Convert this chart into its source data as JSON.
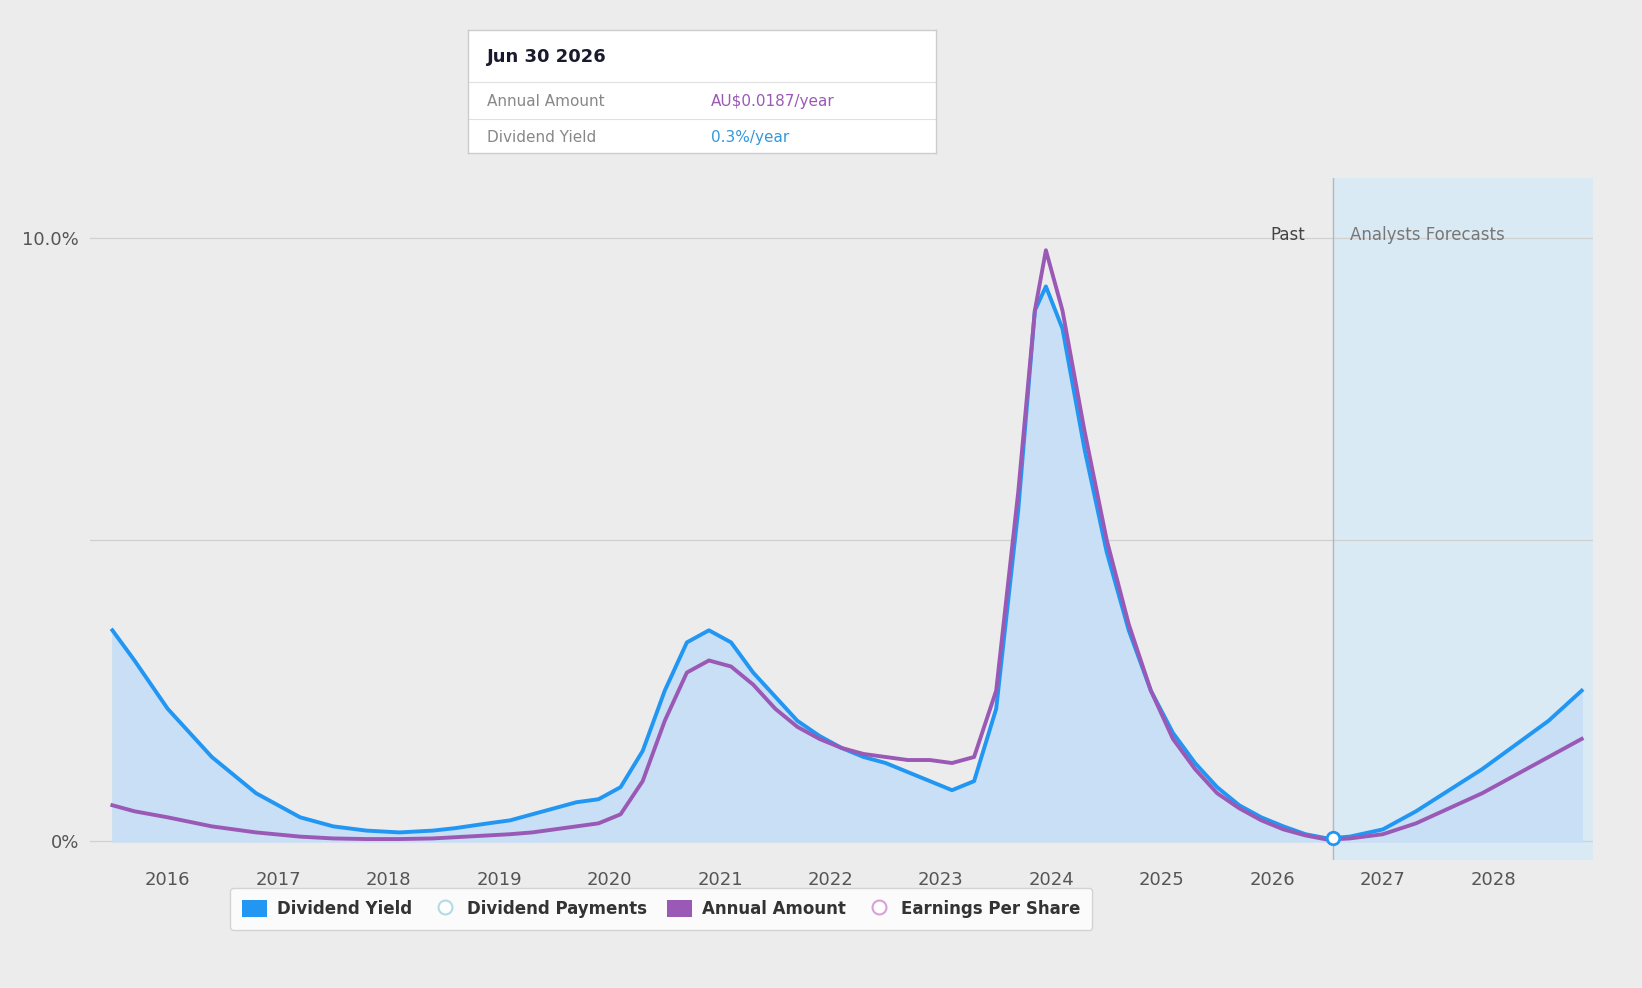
{
  "bg_color": "#ececec",
  "plot_bg_color": "#ececec",
  "line_blue_color": "#2196F3",
  "line_purple_color": "#9b59b6",
  "fill_blue_color": "#c8dff5",
  "forecast_region_color": "#daeaf5",
  "grid_color": "#d0d0d0",
  "xmin": 2015.3,
  "xmax": 2028.9,
  "ymin": -0.3,
  "ymax": 11.0,
  "forecast_start": 2026.55,
  "tooltip_title": "Jun 30 2026",
  "tooltip_annual_label": "Annual Amount",
  "tooltip_annual_value": "AU$0.0187/year",
  "tooltip_yield_label": "Dividend Yield",
  "tooltip_yield_value": "0.3%/year",
  "tooltip_annual_color": "#9b59b6",
  "tooltip_yield_color": "#3498db",
  "past_label": "Past",
  "forecast_label": "Analysts Forecasts",
  "legend_items": [
    {
      "label": "Dividend Yield",
      "color": "#2196F3",
      "filled": true
    },
    {
      "label": "Dividend Payments",
      "color": "#b0dce8",
      "filled": false
    },
    {
      "label": "Annual Amount",
      "color": "#9b59b6",
      "filled": true
    },
    {
      "label": "Earnings Per Share",
      "color": "#d8a0d8",
      "filled": false
    }
  ],
  "blue_x": [
    2015.5,
    2015.7,
    2016.0,
    2016.4,
    2016.8,
    2017.2,
    2017.5,
    2017.8,
    2018.1,
    2018.4,
    2018.6,
    2018.9,
    2019.1,
    2019.3,
    2019.5,
    2019.7,
    2019.9,
    2020.1,
    2020.3,
    2020.5,
    2020.7,
    2020.9,
    2021.1,
    2021.3,
    2021.5,
    2021.7,
    2021.9,
    2022.1,
    2022.3,
    2022.5,
    2022.7,
    2022.9,
    2023.1,
    2023.3,
    2023.5,
    2023.7,
    2023.85,
    2023.95,
    2024.1,
    2024.3,
    2024.5,
    2024.7,
    2024.9,
    2025.1,
    2025.3,
    2025.5,
    2025.7,
    2025.9,
    2026.1,
    2026.3,
    2026.5,
    2026.7,
    2027.0,
    2027.3,
    2027.6,
    2027.9,
    2028.2,
    2028.5,
    2028.8
  ],
  "blue_y": [
    3.5,
    3.0,
    2.2,
    1.4,
    0.8,
    0.4,
    0.25,
    0.18,
    0.15,
    0.18,
    0.22,
    0.3,
    0.35,
    0.45,
    0.55,
    0.65,
    0.7,
    0.9,
    1.5,
    2.5,
    3.3,
    3.5,
    3.3,
    2.8,
    2.4,
    2.0,
    1.75,
    1.55,
    1.4,
    1.3,
    1.15,
    1.0,
    0.85,
    1.0,
    2.2,
    5.5,
    8.8,
    9.2,
    8.5,
    6.5,
    4.8,
    3.5,
    2.5,
    1.8,
    1.3,
    0.9,
    0.6,
    0.4,
    0.25,
    0.12,
    0.05,
    0.08,
    0.2,
    0.5,
    0.85,
    1.2,
    1.6,
    2.0,
    2.5
  ],
  "purple_x": [
    2015.5,
    2015.7,
    2016.0,
    2016.4,
    2016.8,
    2017.2,
    2017.5,
    2017.8,
    2018.1,
    2018.4,
    2018.6,
    2018.9,
    2019.1,
    2019.3,
    2019.5,
    2019.7,
    2019.9,
    2020.1,
    2020.3,
    2020.5,
    2020.7,
    2020.9,
    2021.1,
    2021.3,
    2021.5,
    2021.7,
    2021.9,
    2022.1,
    2022.3,
    2022.5,
    2022.7,
    2022.9,
    2023.1,
    2023.3,
    2023.5,
    2023.7,
    2023.85,
    2023.95,
    2024.1,
    2024.3,
    2024.5,
    2024.7,
    2024.9,
    2025.1,
    2025.3,
    2025.5,
    2025.7,
    2025.9,
    2026.1,
    2026.3,
    2026.5,
    2026.7,
    2027.0,
    2027.3,
    2027.6,
    2027.9,
    2028.2,
    2028.5,
    2028.8
  ],
  "purple_y": [
    0.6,
    0.5,
    0.4,
    0.25,
    0.15,
    0.08,
    0.05,
    0.04,
    0.04,
    0.05,
    0.07,
    0.1,
    0.12,
    0.15,
    0.2,
    0.25,
    0.3,
    0.45,
    1.0,
    2.0,
    2.8,
    3.0,
    2.9,
    2.6,
    2.2,
    1.9,
    1.7,
    1.55,
    1.45,
    1.4,
    1.35,
    1.35,
    1.3,
    1.4,
    2.5,
    5.8,
    8.8,
    9.8,
    8.8,
    6.8,
    5.0,
    3.6,
    2.5,
    1.7,
    1.2,
    0.8,
    0.55,
    0.35,
    0.2,
    0.1,
    0.03,
    0.05,
    0.12,
    0.3,
    0.55,
    0.8,
    1.1,
    1.4,
    1.7
  ],
  "marker_x": 2026.55,
  "marker_y": 0.05
}
